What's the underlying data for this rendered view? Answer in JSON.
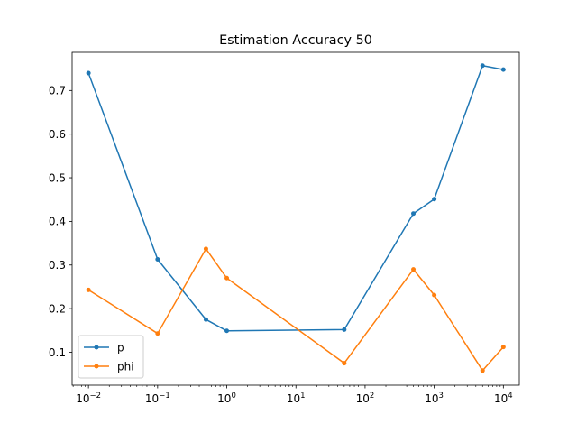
{
  "chart_data": {
    "type": "line",
    "title": "Estimation Accuracy 50",
    "xlabel": "",
    "ylabel": "",
    "xscale": "log",
    "xlim": [
      0.0058,
      17000
    ],
    "ylim": [
      0.0245,
      0.7875
    ],
    "x_ticks": [
      {
        "value": 0.01,
        "base": "10",
        "exp": "−2"
      },
      {
        "value": 0.1,
        "base": "10",
        "exp": "−1"
      },
      {
        "value": 1,
        "base": "10",
        "exp": "0"
      },
      {
        "value": 10,
        "base": "10",
        "exp": "1"
      },
      {
        "value": 100,
        "base": "10",
        "exp": "2"
      },
      {
        "value": 1000,
        "base": "10",
        "exp": "3"
      },
      {
        "value": 10000,
        "base": "10",
        "exp": "4"
      }
    ],
    "y_ticks": [
      {
        "value": 0.1,
        "label": "0.1"
      },
      {
        "value": 0.2,
        "label": "0.2"
      },
      {
        "value": 0.3,
        "label": "0.3"
      },
      {
        "value": 0.4,
        "label": "0.4"
      },
      {
        "value": 0.5,
        "label": "0.5"
      },
      {
        "value": 0.6,
        "label": "0.6"
      },
      {
        "value": 0.7,
        "label": "0.7"
      }
    ],
    "x": [
      0.01,
      0.1,
      0.5,
      1,
      50,
      500,
      1000,
      5000,
      10000
    ],
    "series": [
      {
        "name": "p",
        "color": "#1f77b4",
        "values": [
          0.74,
          0.313,
          0.175,
          0.149,
          0.152,
          0.418,
          0.451,
          0.757,
          0.748
        ]
      },
      {
        "name": "phi",
        "color": "#ff7f0e",
        "values": [
          0.243,
          0.143,
          0.337,
          0.27,
          0.075,
          0.29,
          0.231,
          0.058,
          0.112
        ]
      }
    ],
    "legend": "lower-left",
    "grid": false
  }
}
